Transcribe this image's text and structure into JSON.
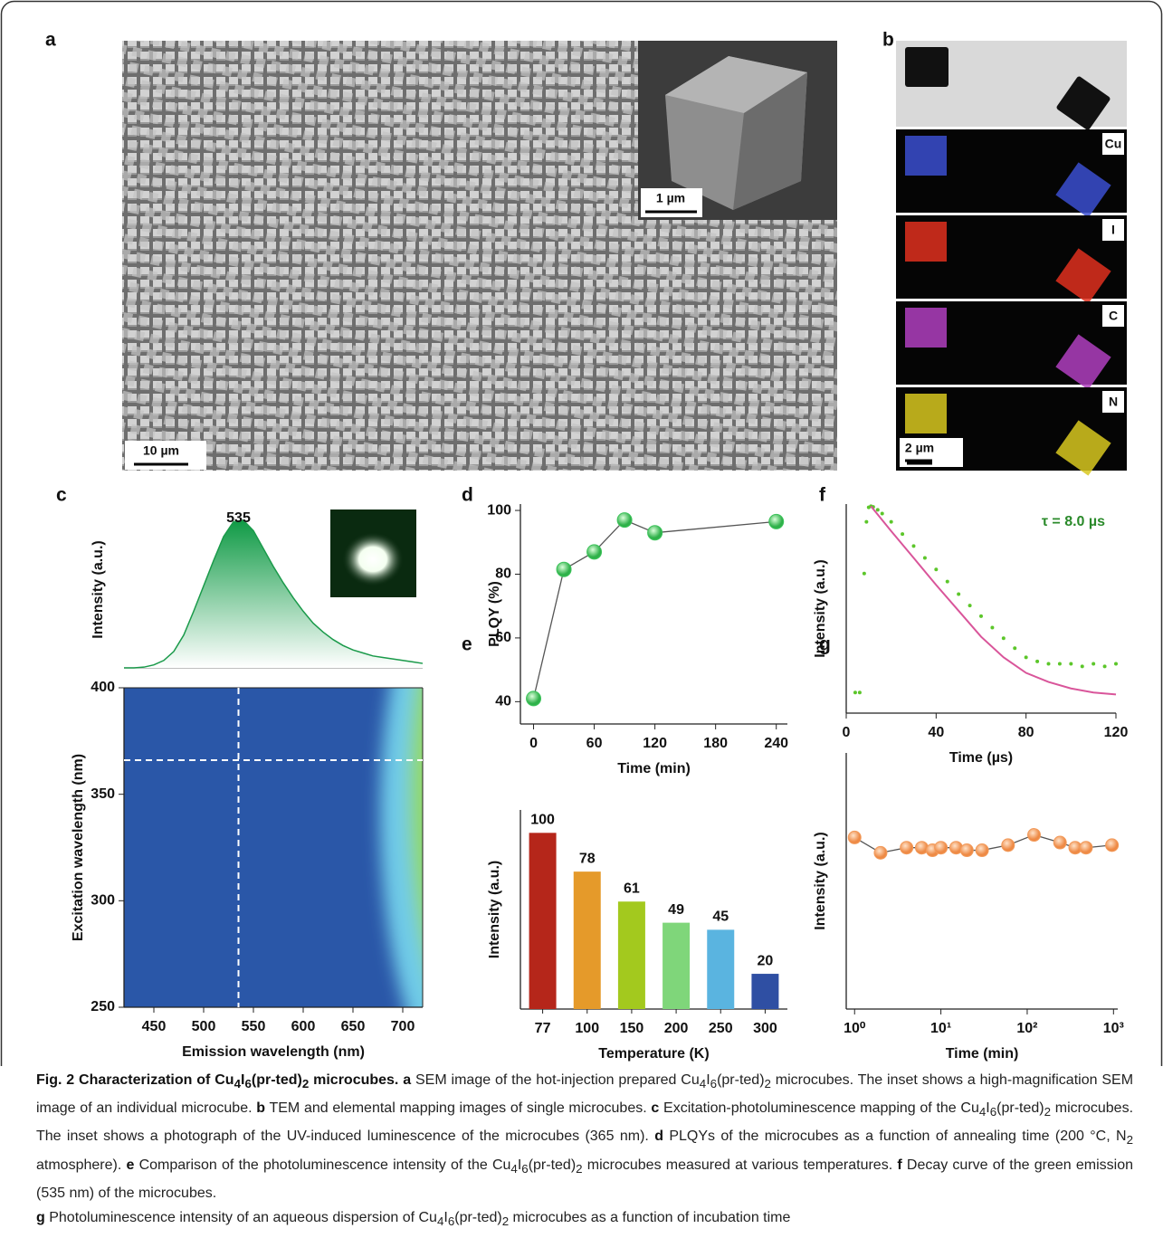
{
  "figure": {
    "panel_a": {
      "label": "a",
      "scale_bar": "10 µm",
      "inset_scale_bar": "1 µm"
    },
    "panel_b": {
      "label": "b",
      "elements": [
        "Cu",
        "I",
        "C",
        "N"
      ],
      "scale_bar": "2 µm"
    }
  },
  "chart_data": [
    {
      "panel": "c",
      "type": "area",
      "ylabel": "Intensity (a.u.)",
      "peak": 535,
      "color": "#1a9a4a",
      "x": [
        420,
        430,
        440,
        450,
        460,
        470,
        480,
        490,
        500,
        510,
        520,
        530,
        540,
        550,
        560,
        570,
        580,
        590,
        600,
        610,
        620,
        630,
        640,
        650,
        660,
        670,
        680,
        690,
        700,
        710,
        720
      ],
      "values": [
        0,
        0,
        0.5,
        2,
        5,
        11,
        22,
        38,
        55,
        72,
        88,
        98,
        99,
        92,
        80,
        68,
        57,
        47,
        38,
        30,
        24,
        19,
        15,
        12,
        10,
        8,
        7,
        6,
        5,
        4,
        3
      ],
      "xlim": [
        420,
        720
      ],
      "ylim": [
        0,
        105
      ]
    },
    {
      "type": "heatmap",
      "xlabel": "Emission wavelength (nm)",
      "ylabel": "Excitation wavelength (nm)",
      "xlim": [
        420,
        720
      ],
      "ylim": [
        250,
        400
      ],
      "xticks": [
        450,
        500,
        550,
        600,
        650,
        700
      ],
      "yticks": [
        250,
        300,
        350,
        400
      ],
      "crosshair": {
        "x": 535,
        "y": 366
      }
    },
    {
      "panel": "d",
      "type": "line",
      "xlabel": "Time (min)",
      "ylabel": "PLQY (%)",
      "color": "#3cc35a",
      "x": [
        0,
        30,
        60,
        90,
        120,
        240
      ],
      "values": [
        41,
        81.5,
        87,
        97,
        93,
        96.5
      ],
      "xlim": [
        -13,
        251
      ],
      "ylim": [
        33,
        102
      ],
      "xticks": [
        0,
        60,
        120,
        180,
        240
      ],
      "yticks": [
        40,
        60,
        80,
        100
      ]
    },
    {
      "panel": "e",
      "type": "bar",
      "xlabel": "Temperature (K)",
      "ylabel": "Intensity (a.u.)",
      "categories": [
        "77",
        "100",
        "150",
        "200",
        "250",
        "300"
      ],
      "values": [
        100,
        78,
        61,
        49,
        45,
        20
      ],
      "colors": [
        "#b5261a",
        "#e59a2a",
        "#a3c91e",
        "#7fd67a",
        "#5ab4e0",
        "#2f4fa3"
      ],
      "ylim": [
        0,
        113
      ]
    },
    {
      "panel": "f",
      "type": "scatter",
      "xlabel": "Time (µs)",
      "ylabel": "Intensity (a.u.)",
      "annotation": "τ = 8.0 µs",
      "log_y": true,
      "xlim": [
        0,
        120
      ],
      "ylim": [
        0.0001,
        1.1
      ],
      "xticks": [
        0,
        40,
        80,
        120
      ],
      "series": [
        {
          "color": "#5cc62a",
          "style": "points",
          "x": [
            4,
            6,
            8,
            9,
            10,
            11,
            12,
            14,
            16,
            20,
            25,
            30,
            35,
            40,
            45,
            50,
            55,
            60,
            65,
            70,
            75,
            80,
            85,
            90,
            95,
            100,
            105,
            110,
            115,
            120
          ],
          "values": [
            0.00025,
            0.00025,
            0.05,
            0.5,
            0.95,
            1.0,
            0.97,
            0.85,
            0.72,
            0.5,
            0.29,
            0.17,
            0.1,
            0.06,
            0.035,
            0.02,
            0.012,
            0.0075,
            0.0045,
            0.0028,
            0.0018,
            0.0012,
            0.001,
            0.0009,
            0.0009,
            0.0009,
            0.0008,
            0.0009,
            0.0008,
            0.0009
          ]
        },
        {
          "color": "#d9559a",
          "style": "line",
          "x": [
            11,
            20,
            30,
            40,
            50,
            60,
            70,
            80,
            90,
            100,
            110,
            120
          ],
          "values": [
            1.0,
            0.33,
            0.1,
            0.03,
            0.0095,
            0.003,
            0.0012,
            0.0006,
            0.0004,
            0.0003,
            0.00025,
            0.00023
          ]
        }
      ]
    },
    {
      "panel": "g",
      "type": "line",
      "xlabel": "Time (min)",
      "ylabel": "Intensity (a.u.)",
      "color": "#f29a5a",
      "log_x": true,
      "xlim": [
        0.8,
        1120
      ],
      "ylim": [
        0,
        1
      ],
      "xticks": [
        {
          "value": 1,
          "label": "10⁰"
        },
        {
          "value": 10,
          "label": "10¹"
        },
        {
          "value": 100,
          "label": "10²"
        },
        {
          "value": 1000,
          "label": "10³"
        }
      ],
      "x": [
        1,
        2,
        4,
        6,
        8,
        10,
        15,
        20,
        30,
        60,
        120,
        240,
        360,
        480,
        960
      ],
      "values": [
        0.67,
        0.61,
        0.63,
        0.63,
        0.62,
        0.63,
        0.63,
        0.62,
        0.62,
        0.64,
        0.68,
        0.65,
        0.63,
        0.63,
        0.64
      ]
    }
  ],
  "caption": [
    "Fig. 2 Characterization of Cu",
    "4",
    "I",
    "6",
    "(pr-ted)",
    "2",
    " microcubes.",
    " a",
    " SEM image of the hot-injection prepared Cu",
    "4",
    "I",
    "6",
    "(pr-ted)",
    "2",
    " microcubes. The inset shows a high-magnification SEM image of an individual microcube. ",
    "b",
    " TEM and elemental mapping images of single microcubes. ",
    "c",
    " Excitation-photoluminescence mapping of the Cu",
    "4",
    "I",
    "6",
    "(pr-ted)",
    "2",
    " microcubes. The inset shows a photograph of the UV-induced luminescence of the microcubes (365 nm). ",
    "d",
    " PLQYs of the microcubes as a function of annealing time (200 °C, N",
    "2",
    " atmosphere). ",
    "e",
    " Comparison of the photoluminescence intensity of the Cu",
    "4",
    "I",
    "6",
    "(pr-ted)",
    "2",
    " microcubes measured at various temperatures. ",
    "f",
    " Decay curve of the green emission (535 nm) of the microcubes.",
    "g",
    " Photoluminescence intensity of an aqueous dispersion of Cu",
    "4",
    "I",
    "6",
    "(pr-ted)",
    "2",
    " microcubes as a function of incubation time"
  ]
}
